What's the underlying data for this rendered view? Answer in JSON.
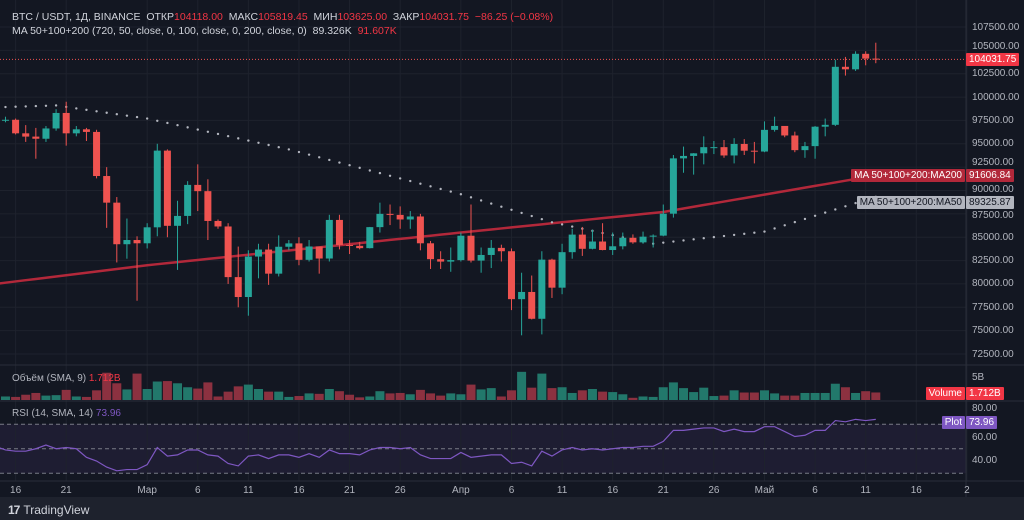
{
  "header": {
    "symbol": "BTC / USDT, 1Д, BINANCE",
    "open_label": "ОТКР",
    "open": "104118.00",
    "high_label": "МАКС",
    "high": "105819.45",
    "low_label": "МИН",
    "low": "103625.00",
    "close_label": "ЗАКР",
    "close": "104031.75",
    "change": "−86.25 (−0.08%)"
  },
  "ma_legend": {
    "label": "MA 50+100+200 (720, 50, close, 0, 100, close, 0, 200, close, 0)",
    "ma50": "89.326K",
    "ma200": "91.607K"
  },
  "badges": {
    "last_price": "104031.75",
    "ma200_label": "MA 50+100+200:MA200",
    "ma200_value": "91606.84",
    "ma50_label": "MA 50+100+200:MA50",
    "ma50_value": "89325.87",
    "volume_label": "Volume",
    "volume_value": "1.712B",
    "rsi_label": "Plot",
    "rsi_value": "73.96"
  },
  "volume_pane": {
    "label": "Объём (SMA, 9)",
    "value": "1.712B",
    "axis_label": "5B"
  },
  "rsi_pane": {
    "label": "RSI (14, SMA, 14)",
    "value": "73.96",
    "axis_labels": [
      "80.00",
      "60.00",
      "40.00"
    ]
  },
  "footer": {
    "brand": "TradingView"
  },
  "colors": {
    "up": "#26a69a",
    "down": "#ef5350",
    "ma200": "#b2283a",
    "ma50": "#b2b5be",
    "rsi": "#7e57c2",
    "background": "#131722"
  },
  "chart_data": {
    "type": "candlestick",
    "price_axis": {
      "ylim": [
        71000,
        109000
      ],
      "ticks": [
        "107500.00",
        "105000.00",
        "102500.00",
        "100000.00",
        "97500.00",
        "95000.00",
        "92500.00",
        "90000.00",
        "87500.00",
        "85000.00",
        "82500.00",
        "80000.00",
        "77500.00",
        "75000.00",
        "72500.00"
      ]
    },
    "time_axis": {
      "ticks": [
        {
          "label": "16",
          "date": "02-16"
        },
        {
          "label": "21",
          "date": "02-21"
        },
        {
          "label": "Мар",
          "date": "03-01"
        },
        {
          "label": "6",
          "date": "03-06"
        },
        {
          "label": "11",
          "date": "03-11"
        },
        {
          "label": "16",
          "date": "03-16"
        },
        {
          "label": "21",
          "date": "03-21"
        },
        {
          "label": "26",
          "date": "03-26"
        },
        {
          "label": "Апр",
          "date": "04-01"
        },
        {
          "label": "6",
          "date": "04-06"
        },
        {
          "label": "11",
          "date": "04-11"
        },
        {
          "label": "16",
          "date": "04-16"
        },
        {
          "label": "21",
          "date": "04-21"
        },
        {
          "label": "26",
          "date": "04-26"
        },
        {
          "label": "Май",
          "date": "05-01"
        },
        {
          "label": "6",
          "date": "05-06"
        },
        {
          "label": "11",
          "date": "05-11"
        },
        {
          "label": "16",
          "date": "05-16"
        },
        {
          "label": "2",
          "date": "05-21"
        }
      ]
    },
    "candles_columns": [
      "date",
      "open",
      "high",
      "low",
      "close"
    ],
    "candles": [
      [
        "02-14",
        96600,
        97700,
        96400,
        97500
      ],
      [
        "02-15",
        97500,
        97900,
        97300,
        97570
      ],
      [
        "02-16",
        97570,
        97700,
        96000,
        96120
      ],
      [
        "02-17",
        96120,
        97000,
        95200,
        95770
      ],
      [
        "02-18",
        95770,
        96700,
        93400,
        95540
      ],
      [
        "02-19",
        95540,
        96900,
        95200,
        96640
      ],
      [
        "02-20",
        96640,
        98700,
        96400,
        98300
      ],
      [
        "02-21",
        98300,
        99500,
        94800,
        96120
      ],
      [
        "02-22",
        96120,
        96900,
        95800,
        96550
      ],
      [
        "02-23",
        96550,
        96700,
        95300,
        96270
      ],
      [
        "02-24",
        96270,
        96500,
        91300,
        91550
      ],
      [
        "02-25",
        91550,
        92500,
        86000,
        88700
      ],
      [
        "02-26",
        88700,
        89300,
        82300,
        84250
      ],
      [
        "02-27",
        84250,
        87000,
        82700,
        84700
      ],
      [
        "02-28",
        84700,
        85100,
        78200,
        84350
      ],
      [
        "03-01",
        84350,
        86500,
        83800,
        86060
      ],
      [
        "03-02",
        86060,
        95000,
        85100,
        94270
      ],
      [
        "03-03",
        94270,
        94400,
        85000,
        86220
      ],
      [
        "03-04",
        86220,
        88900,
        81500,
        87280
      ],
      [
        "03-05",
        87280,
        91000,
        86400,
        90600
      ],
      [
        "03-06",
        90600,
        92800,
        87800,
        89930
      ],
      [
        "03-07",
        89930,
        91200,
        84700,
        86740
      ],
      [
        "03-08",
        86740,
        86900,
        85900,
        86150
      ],
      [
        "03-09",
        86150,
        86500,
        80000,
        80730
      ],
      [
        "03-10",
        80730,
        84000,
        77500,
        78600
      ],
      [
        "03-11",
        78600,
        83600,
        76600,
        82930
      ],
      [
        "03-12",
        82930,
        84300,
        80600,
        83680
      ],
      [
        "03-13",
        83680,
        84300,
        79900,
        81100
      ],
      [
        "03-14",
        81100,
        85200,
        80800,
        83980
      ],
      [
        "03-15",
        83980,
        84700,
        83600,
        84340
      ],
      [
        "03-16",
        84340,
        85000,
        82000,
        82580
      ],
      [
        "03-17",
        82580,
        84700,
        82400,
        84010
      ],
      [
        "03-18",
        84010,
        84000,
        81100,
        82720
      ],
      [
        "03-19",
        82720,
        87400,
        82400,
        86850
      ],
      [
        "03-20",
        86850,
        87400,
        83700,
        84170
      ],
      [
        "03-21",
        84170,
        84700,
        83200,
        84080
      ],
      [
        "03-22",
        84080,
        84500,
        83700,
        83830
      ],
      [
        "03-23",
        83830,
        86100,
        83800,
        86080
      ],
      [
        "03-24",
        86080,
        88700,
        85500,
        87500
      ],
      [
        "03-25",
        87500,
        88500,
        86300,
        87390
      ],
      [
        "03-26",
        87390,
        88300,
        85900,
        86900
      ],
      [
        "03-27",
        86900,
        87800,
        85900,
        87220
      ],
      [
        "03-28",
        87220,
        87500,
        83600,
        84350
      ],
      [
        "03-29",
        84350,
        84600,
        81600,
        82650
      ],
      [
        "03-30",
        82650,
        83500,
        81600,
        82390
      ],
      [
        "03-31",
        82390,
        83900,
        81300,
        82550
      ],
      [
        "04-01",
        82550,
        85500,
        82400,
        85160
      ],
      [
        "04-02",
        85160,
        88500,
        82300,
        82500
      ],
      [
        "04-03",
        82500,
        83900,
        81200,
        83100
      ],
      [
        "04-04",
        83100,
        84700,
        81700,
        83860
      ],
      [
        "04-05",
        83860,
        84200,
        82400,
        83500
      ],
      [
        "04-06",
        83500,
        83800,
        77200,
        78370
      ],
      [
        "04-07",
        78370,
        81200,
        74500,
        79140
      ],
      [
        "04-08",
        79140,
        80900,
        76200,
        76270
      ],
      [
        "04-09",
        76270,
        83500,
        74600,
        82600
      ],
      [
        "04-10",
        82600,
        82700,
        78500,
        79600
      ],
      [
        "04-11",
        79600,
        84300,
        78900,
        83400
      ],
      [
        "04-12",
        83400,
        85900,
        82700,
        85280
      ],
      [
        "04-13",
        85280,
        86100,
        83000,
        83760
      ],
      [
        "04-14",
        83760,
        85800,
        83700,
        84540
      ],
      [
        "04-15",
        84540,
        86500,
        83600,
        83630
      ],
      [
        "04-16",
        83630,
        85500,
        83100,
        84030
      ],
      [
        "04-17",
        84030,
        85500,
        83700,
        84940
      ],
      [
        "04-18",
        84940,
        85300,
        84300,
        84450
      ],
      [
        "04-19",
        84450,
        85600,
        84300,
        85060
      ],
      [
        "04-20",
        85060,
        85300,
        83900,
        85170
      ],
      [
        "04-21",
        85170,
        88500,
        85100,
        87520
      ],
      [
        "04-22",
        87520,
        93800,
        87100,
        93440
      ],
      [
        "04-23",
        93440,
        94700,
        91900,
        93700
      ],
      [
        "04-24",
        93700,
        94000,
        91700,
        93980
      ],
      [
        "04-25",
        93980,
        95800,
        92800,
        94640
      ],
      [
        "04-26",
        94640,
        95300,
        93900,
        94640
      ],
      [
        "04-27",
        94640,
        95400,
        93500,
        93750
      ],
      [
        "04-28",
        93750,
        95600,
        92900,
        94980
      ],
      [
        "04-29",
        94980,
        95500,
        93800,
        94260
      ],
      [
        "04-30",
        94260,
        95200,
        92900,
        94170
      ],
      [
        "05-01",
        94170,
        97400,
        94100,
        96490
      ],
      [
        "05-02",
        96490,
        97900,
        96300,
        96910
      ],
      [
        "05-03",
        96910,
        96900,
        95700,
        95890
      ],
      [
        "05-04",
        95890,
        96300,
        94100,
        94320
      ],
      [
        "05-05",
        94320,
        95200,
        93500,
        94750
      ],
      [
        "05-06",
        94750,
        96900,
        93400,
        96830
      ],
      [
        "05-07",
        96830,
        97700,
        95800,
        97030
      ],
      [
        "05-08",
        97030,
        104000,
        96900,
        103240
      ],
      [
        "05-09",
        103240,
        104300,
        102300,
        102970
      ],
      [
        "05-10",
        102970,
        104900,
        102800,
        104630
      ],
      [
        "05-11",
        104630,
        104900,
        103400,
        104118
      ],
      [
        "05-12",
        104118,
        105819.45,
        103625,
        104031.75
      ]
    ],
    "volume_billions": [
      0.5,
      0.8,
      0.7,
      1.2,
      1.6,
      1.0,
      1.1,
      2.3,
      0.8,
      0.7,
      2.2,
      6.2,
      3.8,
      2.4,
      6.0,
      2.5,
      4.2,
      4.3,
      3.8,
      2.9,
      2.6,
      4.0,
      0.8,
      1.9,
      3.1,
      3.5,
      2.5,
      1.9,
      1.9,
      0.7,
      0.9,
      1.5,
      1.4,
      2.5,
      2.0,
      1.2,
      0.6,
      0.8,
      2.0,
      1.5,
      1.6,
      1.3,
      2.3,
      1.5,
      1.0,
      1.5,
      1.3,
      3.5,
      2.4,
      2.7,
      0.8,
      2.2,
      6.4,
      2.8,
      6.0,
      2.7,
      2.9,
      1.6,
      2.2,
      2.5,
      1.9,
      1.8,
      1.3,
      0.5,
      0.8,
      0.7,
      2.9,
      4.0,
      2.7,
      1.8,
      2.8,
      0.9,
      1.0,
      2.2,
      1.7,
      1.7,
      2.2,
      1.5,
      1.0,
      1.0,
      1.6,
      1.6,
      1.6,
      3.7,
      2.9,
      1.6,
      2.0,
      1.712
    ],
    "rsi": [
      52,
      49,
      48,
      48,
      50,
      53,
      50,
      51,
      50,
      43,
      40,
      35,
      32,
      33,
      33,
      37,
      51,
      44,
      45,
      49,
      49,
      45,
      44,
      38,
      36,
      44,
      45,
      42,
      45,
      45,
      43,
      46,
      43,
      49,
      46,
      46,
      45,
      49,
      51,
      51,
      50,
      51,
      45,
      42,
      42,
      42,
      47,
      43,
      44,
      45,
      45,
      38,
      39,
      36,
      48,
      44,
      49,
      51,
      49,
      50,
      49,
      50,
      51,
      51,
      52,
      52,
      56,
      65,
      65,
      66,
      67,
      67,
      64,
      66,
      64,
      64,
      68,
      68,
      64,
      60,
      61,
      65,
      65,
      73,
      72,
      74,
      73,
      73.96
    ],
    "rsi_levels": [
      70,
      50,
      30
    ],
    "ma200_points": [
      [
        "02-14",
        80000
      ],
      [
        "03-01",
        82000
      ],
      [
        "04-01",
        85500
      ],
      [
        "04-21",
        87700
      ],
      [
        "05-12",
        91606.84
      ]
    ],
    "ma50_points": [
      [
        "02-14",
        98900
      ],
      [
        "02-20",
        99100
      ],
      [
        "03-01",
        97700
      ],
      [
        "03-15",
        94400
      ],
      [
        "04-01",
        89600
      ],
      [
        "04-10",
        86600
      ],
      [
        "04-20",
        84300
      ],
      [
        "05-01",
        85600
      ],
      [
        "05-12",
        89325.87
      ]
    ]
  }
}
